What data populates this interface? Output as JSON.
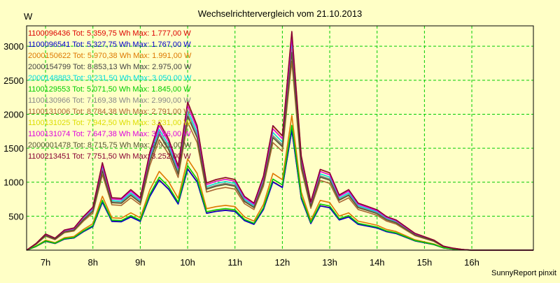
{
  "chart_data": {
    "type": "line",
    "title": "Wechselrichtervergleich vom 21.10.2013",
    "ylabel": "W",
    "xlabel": "",
    "footer": "SunnyReport pinxit",
    "ylim": [
      0,
      3300
    ],
    "yticks": [
      500,
      1000,
      1500,
      2000,
      2500,
      3000
    ],
    "xlim": [
      6.6,
      17.3
    ],
    "xticks": [
      {
        "value": 7,
        "label": "7h"
      },
      {
        "value": 8,
        "label": "8h"
      },
      {
        "value": 9,
        "label": "9h"
      },
      {
        "value": 10,
        "label": "10h"
      },
      {
        "value": 11,
        "label": "11h"
      },
      {
        "value": 12,
        "label": "12h"
      },
      {
        "value": 13,
        "label": "13h"
      },
      {
        "value": 14,
        "label": "14h"
      },
      {
        "value": 15,
        "label": "15h"
      },
      {
        "value": 16,
        "label": "16h"
      }
    ],
    "grid": true,
    "legend_position": "top-left",
    "colors": {
      "background": "#ffffc6",
      "grid": "#00cc00",
      "frame": "#000000"
    },
    "x": [
      6.6,
      6.8,
      7.0,
      7.2,
      7.4,
      7.6,
      7.8,
      8.0,
      8.2,
      8.4,
      8.6,
      8.8,
      9.0,
      9.2,
      9.4,
      9.6,
      9.8,
      10.0,
      10.2,
      10.4,
      10.6,
      10.8,
      11.0,
      11.2,
      11.4,
      11.6,
      11.8,
      12.0,
      12.2,
      12.4,
      12.6,
      12.8,
      13.0,
      13.2,
      13.4,
      13.6,
      13.8,
      14.0,
      14.2,
      14.4,
      14.6,
      14.8,
      15.0,
      15.2,
      15.4,
      15.6,
      15.8,
      16.0,
      16.2,
      16.4,
      16.6,
      16.8,
      17.0,
      17.3
    ],
    "series": [
      {
        "name": "1100096436 Tot: 5.359,75 Wh Max: 1.777,00 W",
        "color": "#dd0000",
        "scale": 0.545
      },
      {
        "name": "1100096541 Tot: 5.327,75 Wh Max: 1.767,00 W",
        "color": "#0000cc",
        "scale": 0.542
      },
      {
        "name": "2000150622 Tot: 5.970,38 Wh Max: 1.991,00 W",
        "color": "#dd7700",
        "scale": 0.61
      },
      {
        "name": "2000154799 Tot: 8.853,13 Wh Max: 2.975,00 W",
        "color": "#444444",
        "scale": 0.91
      },
      {
        "name": "2000148883 Tot: 9.231,50 Wh Max: 3.050,00 W",
        "color": "#00dddd",
        "scale": 0.935
      },
      {
        "name": "1100129553 Tot: 5.071,50 Wh Max: 1.845,00 W",
        "color": "#00cc00",
        "scale": 0.565
      },
      {
        "name": "1100130966 Tot: 7.169,38 Wh Max: 2.990,00 W",
        "color": "#888888",
        "scale": 0.91
      },
      {
        "name": "1100131006 Tot: 8.784,38 Wh Max: 2.791,00 W",
        "color": "#aa6633",
        "scale": 0.855
      },
      {
        "name": "1100131025 Tot: 7.942,50 Wh Max: 3.231,00 W",
        "color": "#dddd00",
        "scale": 0.985
      },
      {
        "name": "1100131074 Tot: 7.647,38 Wh Max: 3.156,00 W",
        "color": "#dd00dd",
        "scale": 0.965
      },
      {
        "name": "2000001478 Tot: 8.715,75 Wh Max: 2.931,00 W",
        "color": "#555533",
        "scale": 0.895
      },
      {
        "name": "1100213451 Tot: 7.751,50 Wh Max: 3.252,00 W",
        "color": "#880033",
        "scale": 0.99
      }
    ],
    "base_profile": [
      0,
      100,
      240,
      180,
      300,
      330,
      500,
      640,
      1300,
      780,
      770,
      900,
      780,
      1450,
      1900,
      1650,
      1250,
      2200,
      1850,
      1000,
      1050,
      1080,
      1050,
      800,
      700,
      1100,
      1850,
      1700,
      3250,
      1400,
      720,
      1200,
      1150,
      820,
      900,
      700,
      650,
      600,
      500,
      450,
      350,
      250,
      200,
      150,
      60,
      30,
      10,
      0,
      0,
      0,
      0,
      0,
      0,
      0
    ]
  }
}
